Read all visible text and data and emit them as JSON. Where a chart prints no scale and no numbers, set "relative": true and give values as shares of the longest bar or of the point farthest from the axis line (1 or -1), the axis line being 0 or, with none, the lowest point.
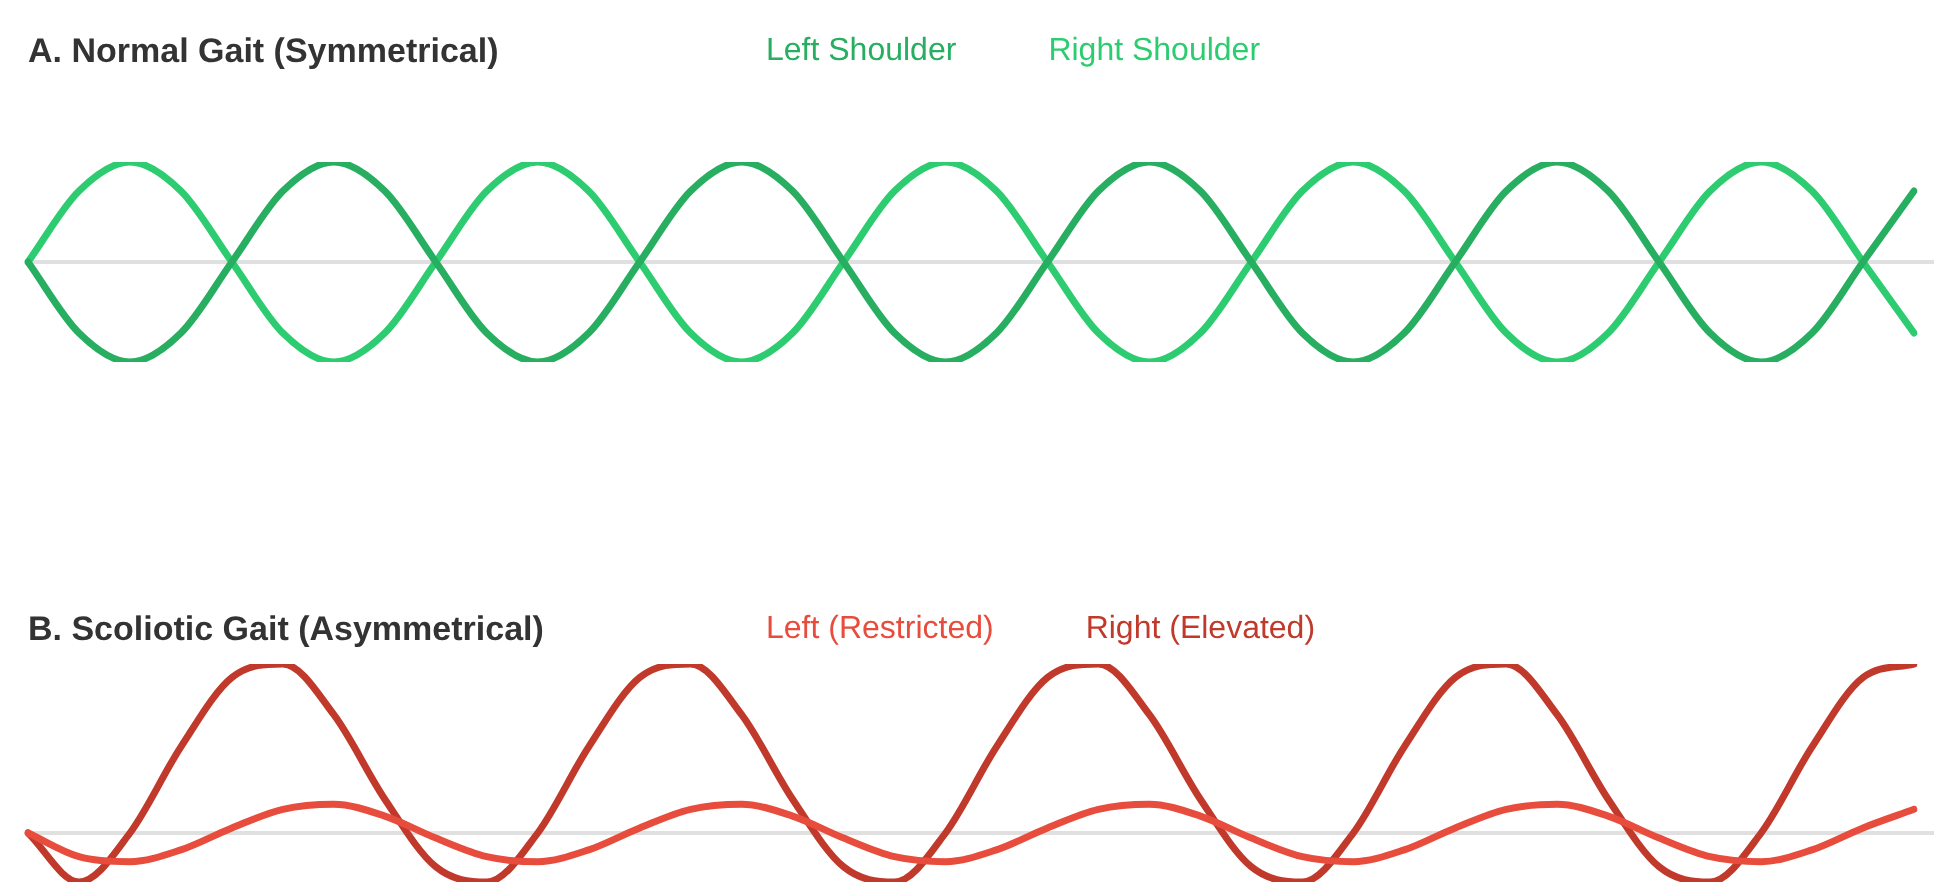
{
  "chart_data": [
    {
      "type": "line",
      "title": "A. Normal Gait (Symmetrical)",
      "relative": true,
      "legend": "top",
      "marker": "none",
      "line_style": "solid",
      "categories": [
        null,
        null,
        null,
        null,
        null,
        null,
        null,
        null,
        null,
        null,
        null,
        null,
        null,
        null,
        null,
        null,
        null,
        null,
        null,
        null,
        null,
        null,
        null,
        null,
        null,
        null,
        null,
        null,
        null,
        null,
        null,
        null,
        null,
        null,
        null,
        null,
        null,
        null
      ],
      "series": [
        {
          "name": "Left Shoulder",
          "color": "#27ae60",
          "values": [
            0,
            -0.71,
            -1,
            -0.71,
            0,
            0.71,
            1,
            0.71,
            0,
            -0.71,
            -1,
            -0.71,
            0,
            0.71,
            1,
            0.71,
            0,
            -0.71,
            -1,
            -0.71,
            0,
            0.71,
            1,
            0.71,
            0,
            -0.71,
            -1,
            -0.71,
            0,
            0.71,
            1,
            0.71,
            0,
            -0.71,
            -1,
            -0.71,
            0,
            0.71
          ]
        },
        {
          "name": "Right Shoulder",
          "color": "#2ecc71",
          "values": [
            0,
            0.71,
            1,
            0.71,
            0,
            -0.71,
            -1,
            -0.71,
            0,
            0.71,
            1,
            0.71,
            0,
            -0.71,
            -1,
            -0.71,
            0,
            0.71,
            1,
            0.71,
            0,
            -0.71,
            -1,
            -0.71,
            0,
            0.71,
            1,
            0.71,
            0,
            -0.71,
            -1,
            -0.71,
            0,
            0.71,
            1,
            0.71,
            0,
            -0.71
          ]
        }
      ]
    },
    {
      "type": "line",
      "title": "B. Scoliotic Gait (Asymmetrical)",
      "relative": true,
      "legend": "top",
      "marker": "none",
      "line_style": "solid",
      "categories": [
        null,
        null,
        null,
        null,
        null,
        null,
        null,
        null,
        null,
        null,
        null,
        null,
        null,
        null,
        null,
        null,
        null,
        null,
        null,
        null,
        null,
        null,
        null,
        null,
        null,
        null,
        null,
        null,
        null,
        null,
        null,
        null,
        null,
        null,
        null,
        null,
        null,
        null
      ],
      "series": [
        {
          "name": "Left (Restricted)",
          "color": "#e74c3c",
          "values": [
            0,
            -0.14,
            -0.17,
            -0.1,
            0.03,
            0.14,
            0.17,
            0.1,
            -0.03,
            -0.14,
            -0.17,
            -0.1,
            0.03,
            0.14,
            0.17,
            0.1,
            -0.03,
            -0.14,
            -0.17,
            -0.1,
            0.03,
            0.14,
            0.17,
            0.1,
            -0.03,
            -0.14,
            -0.17,
            -0.1,
            0.03,
            0.14,
            0.17,
            0.1,
            -0.03,
            -0.14,
            -0.17,
            -0.1,
            0.03,
            0.14
          ]
        },
        {
          "name": "Right (Elevated)",
          "color": "#c0392b",
          "values": [
            0,
            -0.29,
            0,
            0.51,
            0.92,
            1,
            0.7,
            0.2,
            -0.2,
            -0.29,
            0,
            0.51,
            0.92,
            1,
            0.7,
            0.2,
            -0.2,
            -0.29,
            0,
            0.51,
            0.92,
            1,
            0.7,
            0.2,
            -0.2,
            -0.29,
            0,
            0.51,
            0.92,
            1,
            0.7,
            0.2,
            -0.2,
            -0.29,
            0,
            0.51,
            0.92,
            1
          ]
        }
      ]
    }
  ]
}
